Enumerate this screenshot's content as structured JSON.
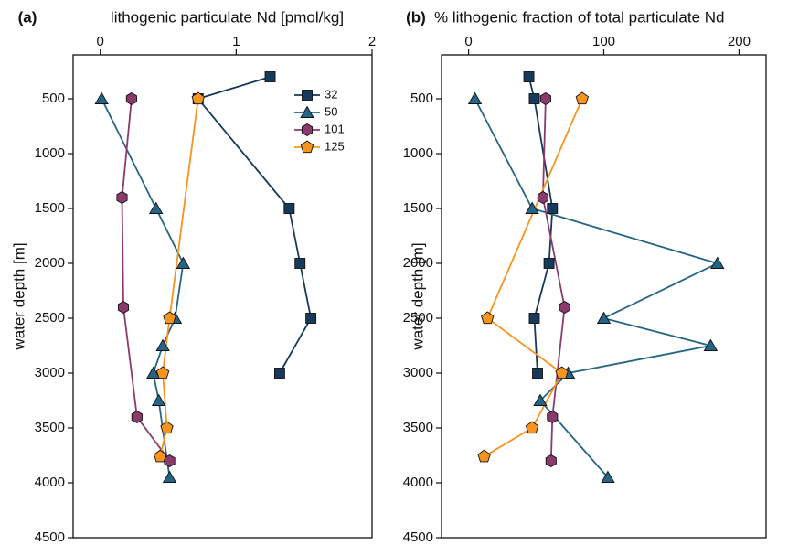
{
  "chart_data": [
    {
      "type": "line",
      "panel_label": "(a)",
      "x_label": "lithogenic particulate Nd [pmol/kg]",
      "y_label": "water depth [m]",
      "xlim": [
        -0.2,
        2
      ],
      "xticks": [
        0,
        1,
        2
      ],
      "ylim": [
        100,
        4500
      ],
      "y_inverted": true,
      "yticks": [
        500,
        1000,
        1500,
        2000,
        2500,
        3000,
        3500,
        4000,
        4500
      ],
      "legend": "upper right",
      "series": [
        {
          "name": "32",
          "color": "#163a5c",
          "marker": "square",
          "x": [
            1.25,
            0.72,
            1.39,
            1.47,
            1.55,
            1.32
          ],
          "y": [
            300,
            500,
            1500,
            2000,
            2500,
            3000
          ]
        },
        {
          "name": "50",
          "color": "#246585",
          "marker": "triangle",
          "x": [
            0.01,
            0.41,
            0.61,
            0.55,
            0.46,
            0.39,
            0.43,
            0.51
          ],
          "y": [
            500,
            1500,
            2000,
            2500,
            2750,
            3000,
            3250,
            3950
          ]
        },
        {
          "name": "101",
          "color": "#8b3a6e",
          "marker": "hexagon",
          "x": [
            0.23,
            0.16,
            0.17,
            0.27,
            0.51
          ],
          "y": [
            500,
            1400,
            2400,
            3400,
            3800
          ]
        },
        {
          "name": "125",
          "color": "#f7941d",
          "marker": "pentagon",
          "x": [
            0.72,
            0.51,
            0.46,
            0.49,
            0.44
          ],
          "y": [
            500,
            2500,
            3000,
            3500,
            3760
          ]
        }
      ]
    },
    {
      "type": "line",
      "panel_label": "(b)",
      "x_label": "% lithogenic fraction of total particulate Nd",
      "y_label": "water depth [m]",
      "xlim": [
        -20,
        220
      ],
      "xticks": [
        0,
        100,
        200
      ],
      "ylim": [
        100,
        4500
      ],
      "y_inverted": true,
      "yticks": [
        500,
        1000,
        1500,
        2000,
        2500,
        3000,
        3500,
        4000,
        4500
      ],
      "legend": false,
      "series": [
        {
          "color": "#163a5c",
          "marker": "square",
          "x": [
            44.6,
            48.6,
            62,
            59.5,
            48.6,
            51
          ],
          "y": [
            300,
            500,
            1500,
            2000,
            2500,
            3000
          ]
        },
        {
          "color": "#246585",
          "marker": "triangle",
          "x": [
            4.7,
            47,
            184,
            100,
            179,
            73.6,
            53,
            103
          ],
          "y": [
            500,
            1500,
            2000,
            2500,
            2750,
            3000,
            3250,
            3950
          ]
        },
        {
          "color": "#8b3a6e",
          "marker": "hexagon",
          "x": [
            57,
            55,
            71,
            62,
            61
          ],
          "y": [
            500,
            1400,
            2400,
            3400,
            3800
          ]
        },
        {
          "color": "#f7941d",
          "marker": "pentagon",
          "x": [
            84,
            14,
            69,
            47,
            11.5
          ],
          "y": [
            500,
            2500,
            3000,
            3500,
            3760
          ]
        }
      ]
    }
  ]
}
